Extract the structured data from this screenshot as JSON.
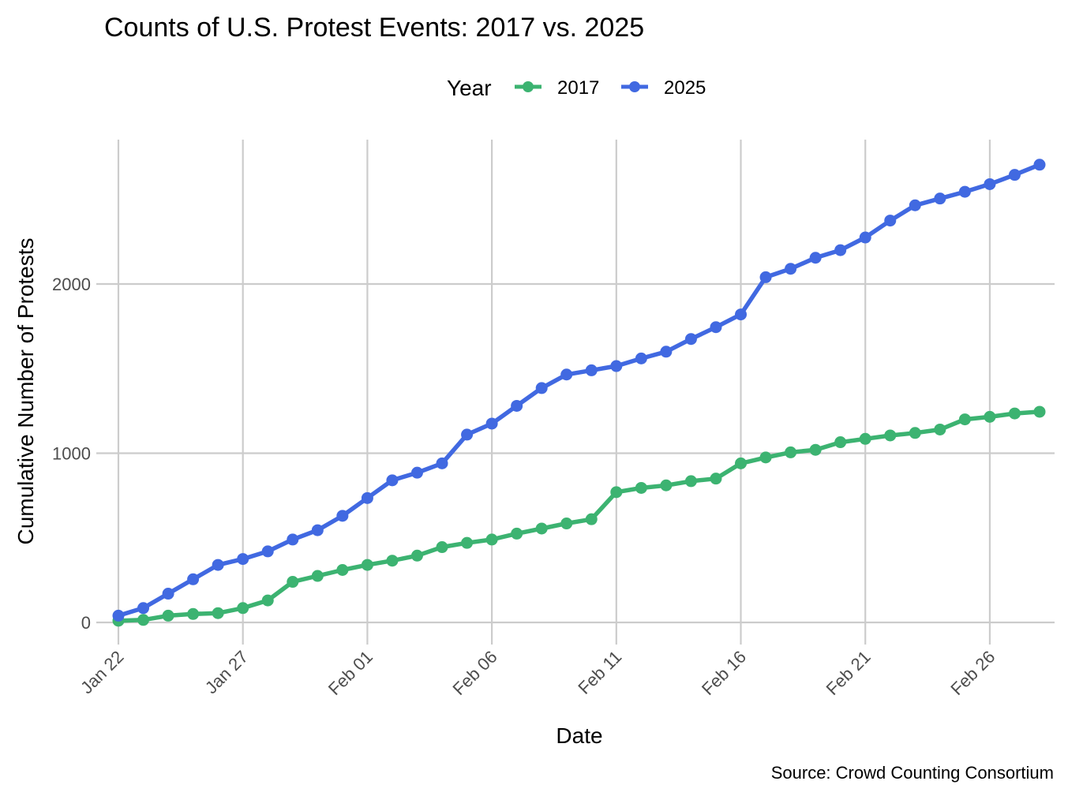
{
  "chart_data": {
    "type": "line",
    "title": "Counts of U.S. Protest Events: 2017 vs. 2025",
    "xlabel": "Date",
    "ylabel": "Cumulative Number of Protests",
    "caption": "Source: Crowd Counting Consortium",
    "legend": {
      "title": "Year",
      "position": "top"
    },
    "x_tick_labels": [
      "Jan 22",
      "Jan 27",
      "Feb 01",
      "Feb 06",
      "Feb 11",
      "Feb 16",
      "Feb 21",
      "Feb 26"
    ],
    "y_tick_labels": [
      "0",
      "1000",
      "2000"
    ],
    "y_ticks": [
      0,
      1000,
      2000
    ],
    "ylim": [
      -130,
      2830
    ],
    "xlim": [
      "Jan 21",
      "Feb 28"
    ],
    "grid": true,
    "x": [
      "Jan 22",
      "Jan 23",
      "Jan 24",
      "Jan 25",
      "Jan 26",
      "Jan 27",
      "Jan 28",
      "Jan 29",
      "Jan 30",
      "Jan 31",
      "Feb 01",
      "Feb 02",
      "Feb 03",
      "Feb 04",
      "Feb 05",
      "Feb 06",
      "Feb 07",
      "Feb 08",
      "Feb 09",
      "Feb 10",
      "Feb 11",
      "Feb 12",
      "Feb 13",
      "Feb 14",
      "Feb 15",
      "Feb 16",
      "Feb 17",
      "Feb 18",
      "Feb 19",
      "Feb 20",
      "Feb 21",
      "Feb 22",
      "Feb 23",
      "Feb 24",
      "Feb 25",
      "Feb 26",
      "Feb 27",
      "Feb 28"
    ],
    "series": [
      {
        "name": "2017",
        "color": "#3cb371",
        "values": [
          10,
          15,
          40,
          50,
          55,
          85,
          130,
          240,
          275,
          310,
          340,
          365,
          395,
          445,
          470,
          490,
          525,
          555,
          585,
          610,
          770,
          795,
          810,
          835,
          850,
          940,
          975,
          1005,
          1020,
          1065,
          1085,
          1105,
          1120,
          1140,
          1200,
          1215,
          1235,
          1245
        ]
      },
      {
        "name": "2025",
        "color": "#4169e1",
        "values": [
          40,
          85,
          170,
          255,
          340,
          375,
          420,
          490,
          545,
          630,
          735,
          840,
          885,
          940,
          1110,
          1175,
          1280,
          1385,
          1465,
          1490,
          1515,
          1560,
          1600,
          1675,
          1745,
          1820,
          2040,
          2090,
          2155,
          2200,
          2275,
          2375,
          2465,
          2505,
          2545,
          2590,
          2645,
          2705
        ]
      }
    ]
  }
}
